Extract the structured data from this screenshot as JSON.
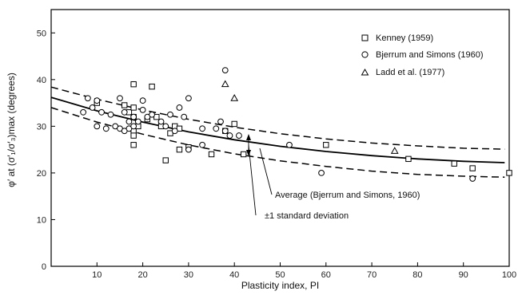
{
  "chart_data": {
    "type": "scatter",
    "xlabel": "Plasticity index, PI",
    "ylabel": "φ′ at (σ′₁/σ′₃)max (degrees)",
    "xlim": [
      0,
      100
    ],
    "ylim": [
      0,
      55
    ],
    "xticks": [
      "10",
      "20",
      "30",
      "40",
      "50",
      "60",
      "70",
      "80",
      "90",
      "100"
    ],
    "yticks": [
      "0",
      "10",
      "20",
      "30",
      "40",
      "50"
    ],
    "xtick_values": [
      10,
      20,
      30,
      40,
      50,
      60,
      70,
      80,
      90,
      100
    ],
    "ytick_values": [
      0,
      10,
      20,
      30,
      40,
      50
    ],
    "grid": false,
    "legend_position": "top-right",
    "series": [
      {
        "name": "Kenney (1959)",
        "marker": "square",
        "points": [
          [
            10,
            35
          ],
          [
            16,
            34.5
          ],
          [
            17,
            33
          ],
          [
            18,
            39
          ],
          [
            18,
            34
          ],
          [
            18,
            32
          ],
          [
            18,
            29
          ],
          [
            18,
            28
          ],
          [
            18,
            26
          ],
          [
            19,
            30
          ],
          [
            21,
            31.5
          ],
          [
            22,
            38.5
          ],
          [
            23,
            32
          ],
          [
            24,
            30
          ],
          [
            25,
            22.7
          ],
          [
            26,
            28.5
          ],
          [
            27,
            30
          ],
          [
            28,
            29.5
          ],
          [
            28,
            25
          ],
          [
            30,
            25.5
          ],
          [
            35,
            24
          ],
          [
            38,
            29
          ],
          [
            40,
            30.5
          ],
          [
            42,
            24
          ],
          [
            60,
            26
          ],
          [
            78,
            23
          ],
          [
            88,
            22
          ],
          [
            92,
            21
          ],
          [
            100,
            20
          ]
        ]
      },
      {
        "name": "Bjerrum and Simons (1960)",
        "marker": "circle",
        "points": [
          [
            7,
            33
          ],
          [
            8,
            36
          ],
          [
            9,
            34
          ],
          [
            10,
            35.5
          ],
          [
            10,
            30
          ],
          [
            11,
            33
          ],
          [
            12,
            29.5
          ],
          [
            13,
            32.5
          ],
          [
            14,
            30
          ],
          [
            15,
            29.5
          ],
          [
            15,
            36
          ],
          [
            16,
            33
          ],
          [
            16,
            29
          ],
          [
            17,
            31
          ],
          [
            17,
            29.5
          ],
          [
            18,
            32
          ],
          [
            18,
            30
          ],
          [
            19,
            31
          ],
          [
            20,
            35.5
          ],
          [
            20,
            33.5
          ],
          [
            21,
            32
          ],
          [
            22,
            32.5
          ],
          [
            24,
            31
          ],
          [
            25,
            30
          ],
          [
            26,
            32.5
          ],
          [
            27,
            29
          ],
          [
            28,
            34
          ],
          [
            29,
            32
          ],
          [
            30,
            36
          ],
          [
            30,
            25
          ],
          [
            33,
            29.5
          ],
          [
            33,
            26
          ],
          [
            36,
            29.5
          ],
          [
            37,
            31
          ],
          [
            38,
            42
          ],
          [
            38,
            29
          ],
          [
            39,
            28
          ],
          [
            41,
            28
          ],
          [
            52,
            26
          ],
          [
            59,
            20
          ],
          [
            92,
            18.8
          ]
        ]
      },
      {
        "name": "Ladd et al. (1977)",
        "marker": "triangle",
        "points": [
          [
            38,
            39
          ],
          [
            40,
            36
          ],
          [
            75,
            24.7
          ]
        ]
      }
    ],
    "curves": [
      {
        "name": "Average (Bjerrum and Simons, 1960)",
        "style": "solid",
        "x": [
          0,
          10,
          20,
          30,
          40,
          50,
          60,
          70,
          80,
          90,
          99
        ],
        "y": [
          36.2,
          33.3,
          30.9,
          28.8,
          27.1,
          25.7,
          24.6,
          23.7,
          23.0,
          22.5,
          22.2
        ]
      },
      {
        "name": "±1 standard deviation",
        "style": "dashed",
        "x": [
          0,
          10,
          20,
          30,
          40,
          50,
          60,
          70,
          80,
          90,
          99
        ],
        "y": [
          38.4,
          35.8,
          33.5,
          31.5,
          29.8,
          28.4,
          27.3,
          26.4,
          25.8,
          25.3,
          25.1
        ]
      },
      {
        "name": "±1 standard deviation",
        "style": "dashed",
        "x": [
          0,
          10,
          20,
          30,
          40,
          50,
          60,
          70,
          80,
          90,
          99
        ],
        "y": [
          34.0,
          30.9,
          28.3,
          26.0,
          24.1,
          22.6,
          21.4,
          20.4,
          19.7,
          19.3,
          19.1
        ]
      }
    ],
    "annotations": [
      {
        "text": "Average (Bjerrum and Simons, 1960)"
      },
      {
        "text": "±1 standard deviation"
      }
    ]
  }
}
